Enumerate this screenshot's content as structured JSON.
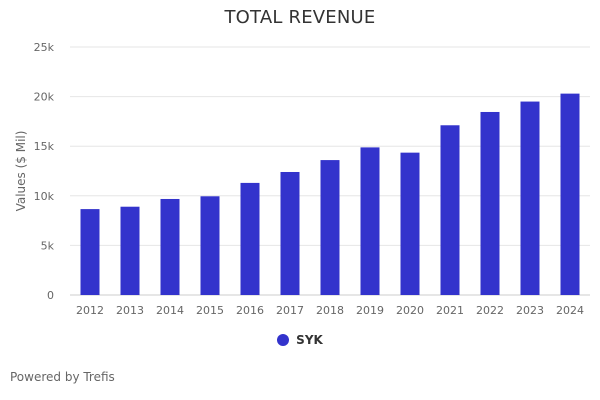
{
  "colors": {
    "bar": "#3333cc",
    "grid": "#e6e6e6",
    "text": "#333333",
    "muted": "#666666"
  },
  "chart_data": {
    "type": "bar",
    "title": "TOTAL REVENUE",
    "ylabel": "Values ($ Mil)",
    "xlabel": "",
    "categories": [
      "2012",
      "2013",
      "2014",
      "2015",
      "2016",
      "2017",
      "2018",
      "2019",
      "2020",
      "2021",
      "2022",
      "2023",
      "2024"
    ],
    "series": [
      {
        "name": "SYK",
        "values": [
          8660,
          8900,
          9680,
          9950,
          11300,
          12400,
          13600,
          14880,
          14350,
          17110,
          18450,
          19500,
          20300
        ]
      }
    ],
    "ylim": [
      0,
      25000
    ],
    "yticks": [
      0,
      5000,
      10000,
      15000,
      20000,
      25000
    ],
    "ytick_labels": [
      "0",
      "5k",
      "10k",
      "15k",
      "20k",
      "25k"
    ],
    "grid": true,
    "legend_position": "bottom-center"
  },
  "legend": {
    "label": "SYK"
  },
  "footer": {
    "credit": "Powered by Trefis"
  }
}
